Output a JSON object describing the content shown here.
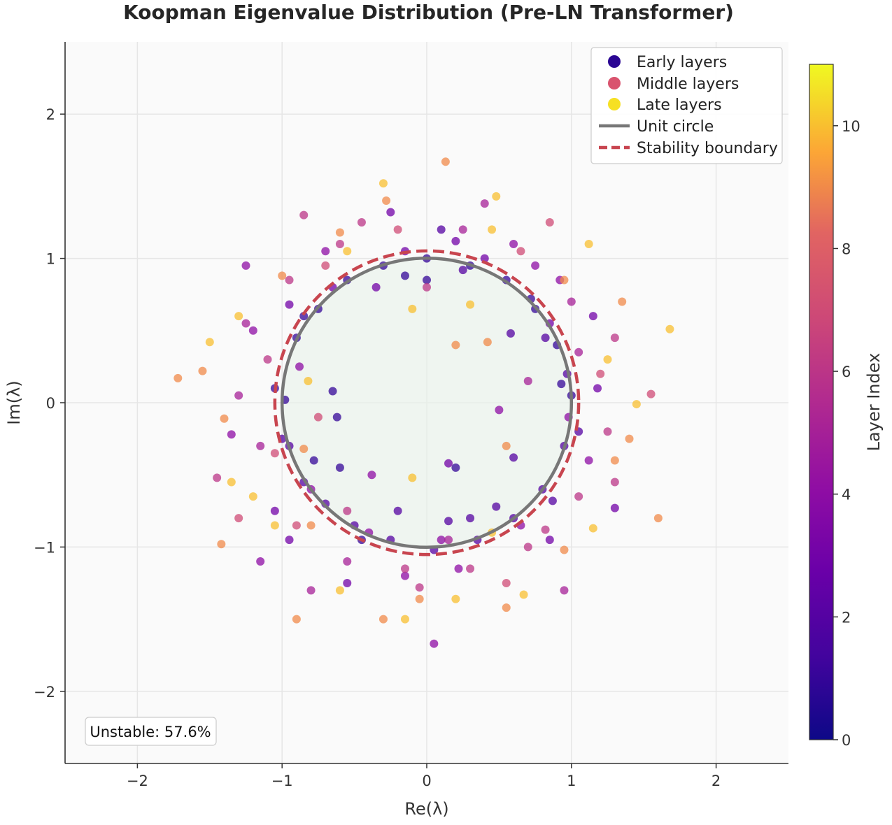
{
  "chart_data": {
    "type": "scatter",
    "title": "Koopman Eigenvalue Distribution (Pre-LN Transformer)",
    "xlabel": "Re(λ)",
    "ylabel": "Im(λ)",
    "xlim": [
      -2.5,
      2.5
    ],
    "ylim": [
      -2.5,
      2.5
    ],
    "x_ticks": [
      "−2",
      "−1",
      "0",
      "1",
      "2"
    ],
    "y_ticks": [
      "−2",
      "−1",
      "0",
      "1",
      "2"
    ],
    "grid": true,
    "legend_position": "top-right",
    "legend": [
      {
        "label": "Early layers",
        "kind": "marker",
        "color": "#2a0693"
      },
      {
        "label": "Middle layers",
        "kind": "marker",
        "color": "#d9536e"
      },
      {
        "label": "Late layers",
        "kind": "marker",
        "color": "#f6e023"
      },
      {
        "label": "Unit circle",
        "kind": "line",
        "color": "#777777"
      },
      {
        "label": "Stability boundary",
        "kind": "dashed-line",
        "color": "#c8454f"
      }
    ],
    "unit_circle_radius": 1.0,
    "stability_boundary_radius": 1.05,
    "colorbar": {
      "label": "Layer Index",
      "range": [
        0,
        11
      ],
      "ticks": [
        "0",
        "2",
        "4",
        "6",
        "8",
        "10"
      ],
      "colormap": "plasma"
    },
    "annotation": "Unstable: 57.6%",
    "series": [
      {
        "points": [
          [
            -0.98,
            0.02,
            1
          ],
          [
            -0.95,
            -0.3,
            2
          ],
          [
            -0.9,
            0.45,
            1
          ],
          [
            -0.85,
            -0.55,
            2
          ],
          [
            -0.75,
            0.65,
            1
          ],
          [
            -0.7,
            -0.7,
            2
          ],
          [
            -0.55,
            0.85,
            1
          ],
          [
            -0.5,
            -0.85,
            2
          ],
          [
            -0.3,
            0.95,
            1
          ],
          [
            -0.25,
            -0.95,
            2
          ],
          [
            0.0,
            1.0,
            1
          ],
          [
            0.05,
            -1.02,
            2
          ],
          [
            0.3,
            0.95,
            1
          ],
          [
            0.35,
            -0.95,
            2
          ],
          [
            0.55,
            0.85,
            1
          ],
          [
            0.6,
            -0.8,
            2
          ],
          [
            0.75,
            0.65,
            1
          ],
          [
            0.8,
            -0.6,
            2
          ],
          [
            0.9,
            0.4,
            1
          ],
          [
            0.95,
            -0.3,
            2
          ],
          [
            1.0,
            0.05,
            1
          ],
          [
            0.97,
            0.2,
            2
          ],
          [
            -0.6,
            -0.45,
            1
          ],
          [
            0.1,
            1.2,
            2
          ],
          [
            0.2,
            -0.45,
            1
          ],
          [
            0.6,
            -0.38,
            2
          ],
          [
            -0.45,
            -0.95,
            1
          ],
          [
            0.25,
            0.92,
            2
          ],
          [
            -0.85,
            0.6,
            1
          ],
          [
            -1.0,
            -0.25,
            2
          ],
          [
            0.72,
            0.72,
            1
          ],
          [
            -0.2,
            -0.75,
            2
          ],
          [
            0.93,
            0.13,
            1
          ],
          [
            0.48,
            -0.72,
            2
          ],
          [
            -0.65,
            0.08,
            1
          ],
          [
            0.82,
            0.45,
            2
          ],
          [
            -0.62,
            -0.1,
            1
          ],
          [
            0.15,
            -0.82,
            2
          ],
          [
            -0.78,
            -0.4,
            1
          ],
          [
            0.58,
            0.48,
            2
          ],
          [
            0.0,
            0.85,
            1
          ],
          [
            0.87,
            -0.68,
            2
          ],
          [
            -0.15,
            0.88,
            1
          ],
          [
            1.05,
            -0.2,
            2
          ],
          [
            -1.05,
            0.1,
            1
          ],
          [
            0.3,
            -0.8,
            2
          ]
        ]
      },
      {
        "points": [
          [
            -0.88,
            0.25,
            4
          ],
          [
            -0.8,
            -0.6,
            4
          ],
          [
            -0.65,
            0.8,
            3
          ],
          [
            -0.4,
            -0.9,
            4
          ],
          [
            -0.15,
            1.05,
            3
          ],
          [
            0.1,
            -0.95,
            4
          ],
          [
            0.4,
            1.0,
            3
          ],
          [
            0.65,
            -0.85,
            4
          ],
          [
            0.85,
            0.55,
            3
          ],
          [
            0.98,
            -0.1,
            4
          ],
          [
            -1.2,
            0.5,
            4
          ],
          [
            -1.05,
            -0.75,
            3
          ],
          [
            -0.7,
            1.05,
            4
          ],
          [
            0.2,
            1.12,
            3
          ],
          [
            0.75,
            0.95,
            4
          ],
          [
            1.15,
            0.6,
            3
          ],
          [
            1.12,
            -0.4,
            4
          ],
          [
            0.85,
            -0.95,
            3
          ],
          [
            -0.15,
            -1.2,
            4
          ],
          [
            -0.35,
            0.8,
            3
          ],
          [
            0.05,
            -1.67,
            4
          ],
          [
            -1.35,
            -0.22,
            4
          ],
          [
            1.3,
            -0.73,
            3
          ],
          [
            0.6,
            1.1,
            4
          ],
          [
            -0.55,
            -1.25,
            3
          ],
          [
            -1.15,
            -1.1,
            4
          ],
          [
            -0.95,
            0.68,
            3
          ],
          [
            0.5,
            -0.05,
            4
          ],
          [
            -0.95,
            -0.95,
            3
          ],
          [
            0.92,
            0.85,
            4
          ],
          [
            -0.25,
            1.32,
            3
          ],
          [
            0.22,
            -1.15,
            4
          ],
          [
            1.18,
            0.1,
            3
          ],
          [
            -0.38,
            -0.5,
            4
          ],
          [
            0.15,
            -0.42,
            3
          ],
          [
            -1.25,
            0.95,
            4
          ]
        ]
      },
      {
        "points": [
          [
            -1.1,
            0.3,
            6
          ],
          [
            -1.15,
            -0.3,
            5
          ],
          [
            -0.95,
            0.85,
            6
          ],
          [
            -0.9,
            -0.85,
            7
          ],
          [
            -0.6,
            1.1,
            6
          ],
          [
            -0.55,
            -1.1,
            5
          ],
          [
            -0.2,
            1.2,
            7
          ],
          [
            -0.15,
            -1.15,
            6
          ],
          [
            0.25,
            1.2,
            5
          ],
          [
            0.3,
            -1.15,
            6
          ],
          [
            0.65,
            1.05,
            7
          ],
          [
            0.7,
            -1.0,
            6
          ],
          [
            1.0,
            0.7,
            5
          ],
          [
            1.05,
            -0.65,
            6
          ],
          [
            1.2,
            0.2,
            7
          ],
          [
            1.25,
            -0.2,
            6
          ],
          [
            -1.3,
            0.05,
            5
          ],
          [
            -1.45,
            -0.52,
            6
          ],
          [
            -1.3,
            -0.8,
            7
          ],
          [
            -0.85,
            1.3,
            6
          ],
          [
            0.4,
            1.38,
            5
          ],
          [
            1.3,
            0.45,
            6
          ],
          [
            1.55,
            0.06,
            7
          ],
          [
            0.95,
            -1.3,
            5
          ],
          [
            -0.05,
            -1.28,
            6
          ],
          [
            -1.05,
            -0.35,
            7
          ],
          [
            1.05,
            0.35,
            5
          ],
          [
            -0.45,
            1.25,
            6
          ],
          [
            0.55,
            -1.25,
            7
          ],
          [
            -1.25,
            0.55,
            5
          ],
          [
            1.3,
            -0.55,
            6
          ],
          [
            0.85,
            1.25,
            7
          ],
          [
            -0.8,
            -1.3,
            5
          ],
          [
            0.0,
            0.8,
            6
          ],
          [
            -0.75,
            -0.1,
            7
          ],
          [
            0.7,
            0.15,
            5
          ],
          [
            0.82,
            -0.88,
            6
          ],
          [
            -0.7,
            0.95,
            7
          ],
          [
            0.15,
            -0.95,
            5
          ],
          [
            -0.55,
            -0.75,
            6
          ]
        ]
      },
      {
        "points": [
          [
            -1.72,
            0.17,
            9
          ],
          [
            -1.5,
            0.42,
            10
          ],
          [
            -1.4,
            -0.11,
            9
          ],
          [
            -1.35,
            -0.55,
            10
          ],
          [
            -1.42,
            -0.98,
            9
          ],
          [
            -1.05,
            -0.85,
            10
          ],
          [
            -0.9,
            -1.5,
            9
          ],
          [
            -0.6,
            -1.3,
            10
          ],
          [
            -0.3,
            -1.5,
            9
          ],
          [
            -0.15,
            -1.5,
            10
          ],
          [
            -0.05,
            -1.36,
            9
          ],
          [
            0.2,
            -1.36,
            10
          ],
          [
            0.55,
            -1.42,
            9
          ],
          [
            0.67,
            -1.33,
            10
          ],
          [
            0.95,
            -1.02,
            9
          ],
          [
            1.15,
            -0.87,
            10
          ],
          [
            1.3,
            -0.4,
            9
          ],
          [
            1.45,
            -0.01,
            10
          ],
          [
            1.6,
            -0.8,
            9
          ],
          [
            1.68,
            0.51,
            10
          ],
          [
            1.35,
            0.7,
            9
          ],
          [
            1.12,
            1.1,
            10
          ],
          [
            0.95,
            0.85,
            9
          ],
          [
            0.48,
            1.43,
            10
          ],
          [
            0.13,
            1.67,
            9
          ],
          [
            -0.3,
            1.52,
            10
          ],
          [
            -0.28,
            1.4,
            9
          ],
          [
            -0.55,
            1.05,
            10
          ],
          [
            -1.0,
            0.88,
            9
          ],
          [
            -1.3,
            0.6,
            10
          ],
          [
            -1.55,
            0.22,
            9
          ],
          [
            -1.2,
            -0.65,
            10
          ],
          [
            -0.8,
            -0.85,
            9
          ],
          [
            1.25,
            0.3,
            10
          ],
          [
            1.4,
            -0.25,
            9
          ],
          [
            0.45,
            1.2,
            10
          ],
          [
            -0.6,
            1.18,
            9
          ],
          [
            -0.1,
            0.65,
            10
          ],
          [
            0.2,
            0.4,
            9
          ],
          [
            0.3,
            0.68,
            10
          ],
          [
            0.55,
            -0.3,
            9
          ],
          [
            -0.1,
            -0.52,
            10
          ],
          [
            -0.85,
            -0.32,
            9
          ],
          [
            0.45,
            -0.9,
            10
          ],
          [
            0.42,
            0.42,
            9
          ],
          [
            -0.82,
            0.15,
            10
          ]
        ]
      }
    ]
  }
}
